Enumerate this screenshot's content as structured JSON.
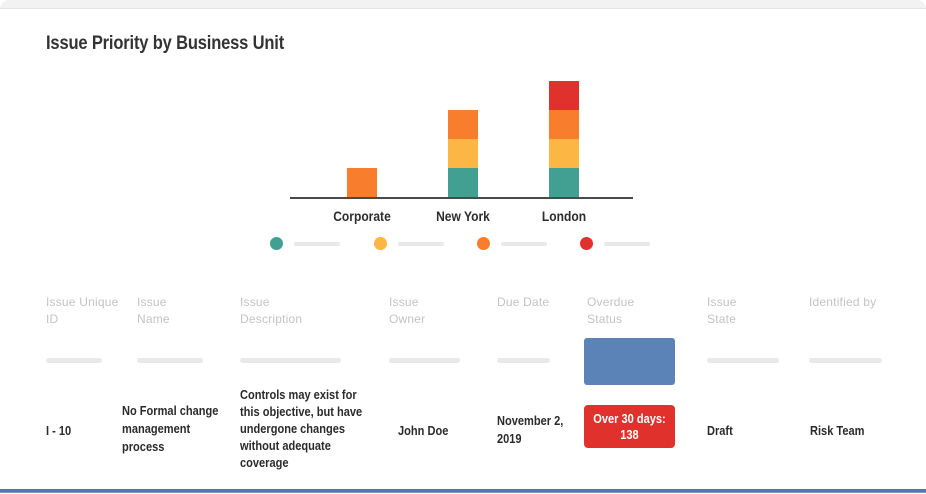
{
  "page": {
    "title": "Issue Priority by Business Unit"
  },
  "colors": {
    "teal": "#42a093",
    "amber": "#fcb644",
    "orange": "#f87e2d",
    "red": "#e1312d",
    "blue_block": "#5b83b8",
    "bottom_border": "#4c79b3",
    "skeleton": "#e9e9e9",
    "header_text": "#c3c3c7",
    "axis": "#4a4a4a"
  },
  "chart_data": {
    "type": "bar",
    "stacked": true,
    "title": "Issue Priority by Business Unit",
    "categories": [
      "Corporate",
      "New York",
      "London"
    ],
    "series": [
      {
        "name": "priority-level-1",
        "color": "#42a093",
        "values": [
          0,
          1,
          1
        ],
        "label_redacted": true
      },
      {
        "name": "priority-level-2",
        "color": "#fcb644",
        "values": [
          0,
          1,
          1
        ],
        "label_redacted": true
      },
      {
        "name": "priority-level-3",
        "color": "#f87e2d",
        "values": [
          1,
          1,
          1
        ],
        "label_redacted": true
      },
      {
        "name": "priority-level-4",
        "color": "#e1312d",
        "values": [
          0,
          0,
          1
        ],
        "label_redacted": true
      }
    ],
    "xlabel": "",
    "ylabel": "",
    "ylim": [
      0,
      4
    ],
    "gridlines": false,
    "y_axis_visible": false,
    "legend_position": "bottom",
    "legend_labels_redacted": true
  },
  "table": {
    "columns": [
      {
        "label": "Issue Unique ID"
      },
      {
        "label": "Issue Name"
      },
      {
        "label": "Issue Description"
      },
      {
        "label": "Issue Owner"
      },
      {
        "label": "Due Date"
      },
      {
        "label": "Overdue Status"
      },
      {
        "label": "Issue State"
      },
      {
        "label": "Identified by"
      }
    ],
    "row": {
      "issue_unique_id": "I - 10",
      "issue_name": "No Formal change management process",
      "issue_description": "Controls may exist for this objective, but have undergone changes without adequate coverage",
      "issue_owner": "John Doe",
      "due_date": "November 2, 2019",
      "overdue_status": {
        "label": "Over 30 days:",
        "count": "138"
      },
      "issue_state": "Draft",
      "identified_by": "Risk Team"
    }
  }
}
